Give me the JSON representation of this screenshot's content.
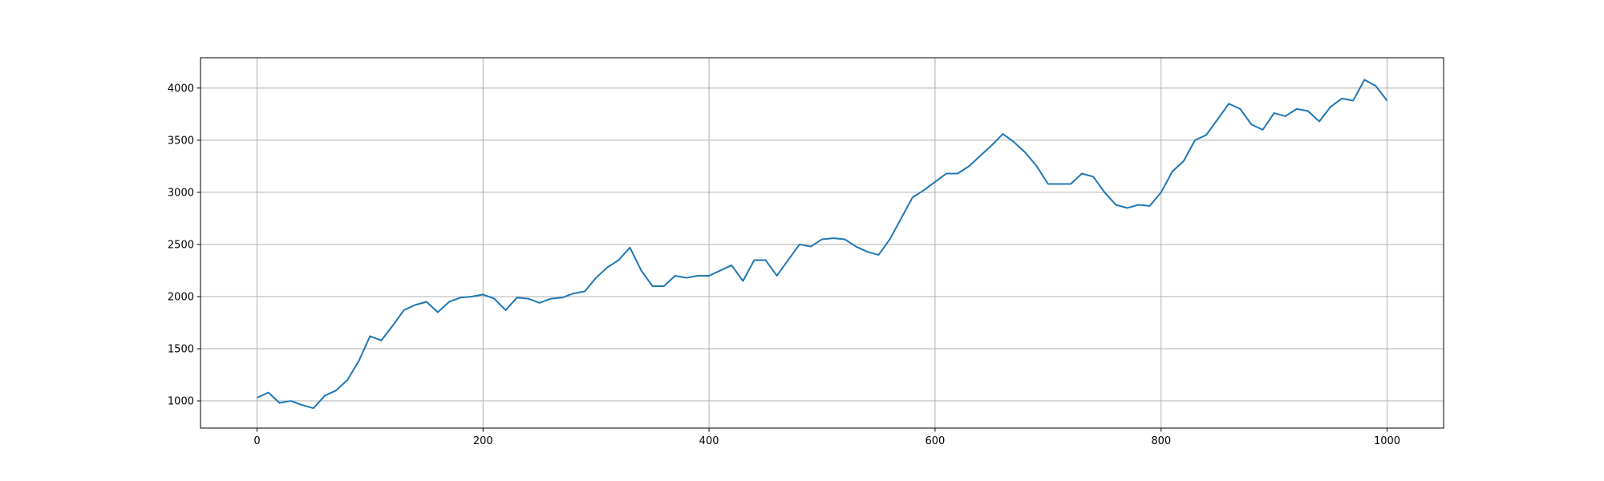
{
  "chart_data": {
    "type": "line",
    "x": [
      0,
      10,
      20,
      30,
      40,
      50,
      60,
      70,
      80,
      90,
      100,
      110,
      120,
      130,
      140,
      150,
      160,
      170,
      180,
      190,
      200,
      210,
      220,
      230,
      240,
      250,
      260,
      270,
      280,
      290,
      300,
      310,
      320,
      330,
      340,
      350,
      360,
      370,
      380,
      390,
      400,
      410,
      420,
      430,
      440,
      450,
      460,
      470,
      480,
      490,
      500,
      510,
      520,
      530,
      540,
      550,
      560,
      570,
      580,
      590,
      600,
      610,
      620,
      630,
      640,
      650,
      660,
      670,
      680,
      690,
      700,
      710,
      720,
      730,
      740,
      750,
      760,
      770,
      780,
      790,
      800,
      810,
      820,
      830,
      840,
      850,
      860,
      870,
      880,
      890,
      900,
      910,
      920,
      930,
      940,
      950,
      960,
      970,
      980,
      990,
      1000
    ],
    "series": [
      {
        "color": "#1f77b4",
        "values": [
          1030,
          1080,
          980,
          1000,
          960,
          930,
          1050,
          1100,
          1200,
          1380,
          1620,
          1580,
          1720,
          1870,
          1920,
          1950,
          1850,
          1950,
          1990,
          2000,
          2020,
          1980,
          1870,
          1990,
          1980,
          1940,
          1980,
          1990,
          2030,
          2050,
          2180,
          2280,
          2350,
          2470,
          2250,
          2100,
          2100,
          2200,
          2180,
          2200,
          2200,
          2250,
          2300,
          2150,
          2350,
          2350,
          2200,
          2350,
          2500,
          2480,
          2550,
          2560,
          2550,
          2480,
          2430,
          2400,
          2550,
          2750,
          2950,
          3020,
          3100,
          3180,
          3180,
          3250,
          3350,
          3450,
          3560,
          3480,
          3380,
          3250,
          3080,
          3080,
          3080,
          3180,
          3150,
          3000,
          2880,
          2850,
          2880,
          2870,
          3000,
          3200,
          3300,
          3500,
          3550,
          3700,
          3850,
          3800,
          3650,
          3600,
          3760,
          3730,
          3800,
          3780,
          3680,
          3820,
          3900,
          3880,
          4080,
          4020,
          3880
        ]
      }
    ],
    "xlim": [
      -50,
      1050
    ],
    "ylim": [
      739,
      4291
    ],
    "xticks": [
      0,
      200,
      400,
      600,
      800,
      1000
    ],
    "yticks": [
      1000,
      1500,
      2000,
      2500,
      3000,
      3500,
      4000
    ],
    "grid": true
  }
}
